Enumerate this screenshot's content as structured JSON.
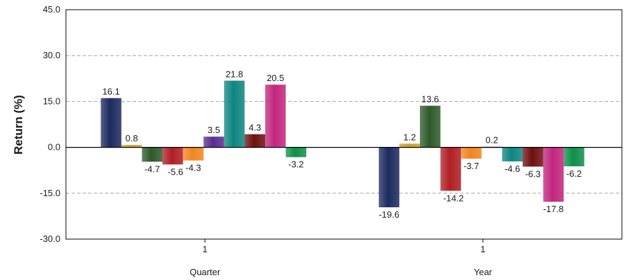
{
  "chart_data": {
    "type": "bar",
    "ylabel": "Return (%)",
    "ylim": [
      -30,
      45
    ],
    "yticks": [
      "45.0",
      "30.0",
      "15.0",
      "0.0",
      "-15.0",
      "-30.0"
    ],
    "ytick_values": [
      45,
      30,
      15,
      0,
      -15,
      -30
    ],
    "grid": true,
    "categories": [
      {
        "line1": "1",
        "line2": "Quarter"
      },
      {
        "line1": "1",
        "line2": "Year"
      }
    ],
    "series": [
      {
        "color": "#1c2a5e",
        "values": [
          16.1,
          -19.6
        ],
        "labels": [
          "16.1",
          "-19.6"
        ]
      },
      {
        "color": "#c9a227",
        "values": [
          0.8,
          1.2
        ],
        "labels": [
          "0.8",
          "1.2"
        ]
      },
      {
        "color": "#2e5a2a",
        "values": [
          -4.7,
          13.6
        ],
        "labels": [
          "-4.7",
          "13.6"
        ]
      },
      {
        "color": "#b01e23",
        "values": [
          -5.6,
          -14.2
        ],
        "labels": [
          "-5.6",
          "-14.2"
        ]
      },
      {
        "color": "#f0851f",
        "values": [
          -4.3,
          -3.7
        ],
        "labels": [
          "-4.3",
          "-3.7"
        ]
      },
      {
        "color": "#5b2c91",
        "values": [
          3.5,
          0.2
        ],
        "labels": [
          "3.5",
          "0.2"
        ]
      },
      {
        "color": "#0f8582",
        "values": [
          21.8,
          -4.6
        ],
        "labels": [
          "21.8",
          "-4.6"
        ]
      },
      {
        "color": "#6e1010",
        "values": [
          4.3,
          -6.3
        ],
        "labels": [
          "4.3",
          "-6.3"
        ]
      },
      {
        "color": "#c2267e",
        "values": [
          20.5,
          -17.8
        ],
        "labels": [
          "20.5",
          "-17.8"
        ]
      },
      {
        "color": "#0e8f4a",
        "values": [
          -3.2,
          -6.2
        ],
        "labels": [
          "-3.2",
          "-6.2"
        ]
      }
    ]
  }
}
